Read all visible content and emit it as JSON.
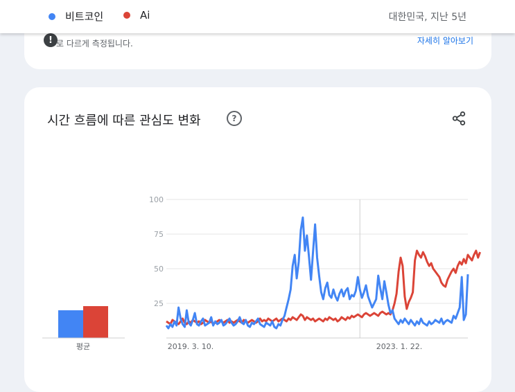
{
  "header": {
    "legend": [
      {
        "label": "비트코인",
        "color": "#4285f4"
      },
      {
        "label": "Ai",
        "color": "#db4437"
      }
    ],
    "region_period": "대한민국, 지난 5년"
  },
  "notice": {
    "icon": "alert-icon",
    "text": "로 다르게 측정됩니다.",
    "link": "자세히 알아보기"
  },
  "card": {
    "title": "시간 흐름에 따른 관심도 변화",
    "help_icon": "question-icon",
    "share_icon": "share-icon"
  },
  "chart_data": {
    "type": "line",
    "average_label": "평균",
    "averages": [
      20,
      23
    ],
    "x_tick_labels": [
      "2019. 3. 10.",
      "2023. 1. 22."
    ],
    "ylim": [
      0,
      100
    ],
    "yticks": [
      25,
      50,
      75,
      100
    ],
    "grid": true,
    "series": [
      {
        "name": "비트코인",
        "color": "#4285f4",
        "values": [
          9,
          7,
          10,
          8,
          12,
          9,
          22,
          14,
          10,
          8,
          20,
          11,
          9,
          13,
          18,
          10,
          9,
          12,
          14,
          9,
          10,
          11,
          15,
          9,
          12,
          10,
          11,
          13,
          9,
          10,
          12,
          14,
          11,
          9,
          10,
          12,
          15,
          11,
          10,
          13,
          9,
          8,
          11,
          10,
          12,
          14,
          10,
          9,
          8,
          11,
          10,
          9,
          12,
          8,
          7,
          10,
          9,
          13,
          16,
          22,
          28,
          35,
          52,
          60,
          43,
          55,
          78,
          87,
          63,
          74,
          59,
          42,
          62,
          82,
          58,
          45,
          33,
          28,
          36,
          40,
          31,
          29,
          35,
          30,
          27,
          32,
          35,
          30,
          34,
          36,
          28,
          31,
          30,
          34,
          44,
          35,
          29,
          33,
          38,
          30,
          26,
          22,
          25,
          28,
          45,
          36,
          28,
          41,
          33,
          24,
          18,
          20,
          14,
          12,
          10,
          13,
          11,
          14,
          12,
          10,
          13,
          11,
          9,
          12,
          10,
          14,
          11,
          10,
          9,
          12,
          10,
          11,
          13,
          12,
          11,
          14,
          10,
          12,
          13,
          12,
          11,
          16,
          14,
          18,
          22,
          44,
          13,
          17,
          46
        ]
      },
      {
        "name": "Ai",
        "color": "#db4437",
        "values": [
          12,
          11,
          10,
          13,
          12,
          11,
          10,
          12,
          14,
          11,
          10,
          12,
          11,
          13,
          12,
          11,
          12,
          10,
          11,
          13,
          12,
          11,
          12,
          10,
          11,
          12,
          13,
          12,
          11,
          12,
          13,
          11,
          12,
          11,
          12,
          13,
          12,
          11,
          13,
          12,
          11,
          12,
          13,
          12,
          11,
          12,
          14,
          12,
          13,
          12,
          14,
          13,
          12,
          13,
          14,
          12,
          13,
          14,
          13,
          12,
          14,
          13,
          15,
          14,
          13,
          15,
          17,
          16,
          13,
          15,
          14,
          13,
          14,
          12,
          13,
          14,
          13,
          12,
          14,
          13,
          15,
          14,
          13,
          14,
          12,
          13,
          15,
          14,
          13,
          15,
          14,
          16,
          15,
          16,
          17,
          16,
          15,
          17,
          18,
          17,
          16,
          17,
          18,
          17,
          16,
          18,
          19,
          18,
          17,
          18,
          17,
          20,
          25,
          32,
          48,
          58,
          52,
          30,
          21,
          26,
          29,
          33,
          56,
          63,
          60,
          58,
          62,
          59,
          55,
          52,
          54,
          50,
          48,
          46,
          44,
          40,
          38,
          37,
          42,
          45,
          48,
          50,
          47,
          52,
          55,
          53,
          57,
          54,
          60,
          58,
          56,
          60,
          63,
          58,
          62
        ]
      }
    ]
  }
}
